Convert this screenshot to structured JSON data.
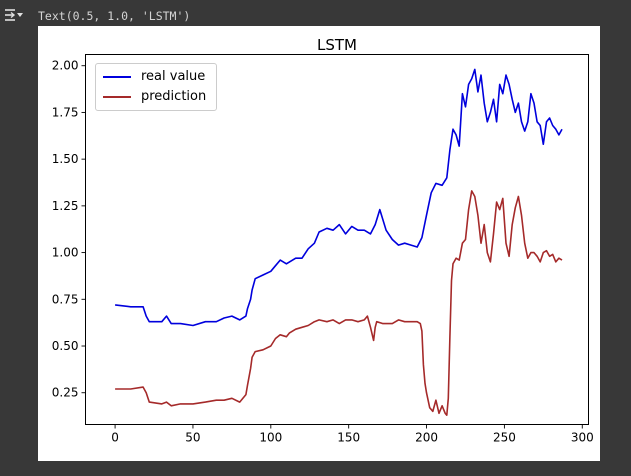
{
  "output": {
    "expand_icon": "output-expand-icon",
    "repr_text": "Text(0.5, 1.0, 'LSTM')"
  },
  "chart_data": {
    "type": "line",
    "title": "LSTM",
    "xlabel": "",
    "ylabel": "",
    "xlim": [
      -19,
      304
    ],
    "ylim": [
      0.08,
      2.06
    ],
    "xticks": [
      0,
      50,
      100,
      150,
      200,
      250,
      300
    ],
    "yticks": [
      0.25,
      0.5,
      0.75,
      1.0,
      1.25,
      1.5,
      1.75,
      2.0
    ],
    "legend_position": "top-left",
    "grid": false,
    "series": [
      {
        "name": "real value",
        "color": "#0000dd",
        "points": [
          [
            0,
            0.72
          ],
          [
            10,
            0.71
          ],
          [
            18,
            0.71
          ],
          [
            20,
            0.66
          ],
          [
            22,
            0.63
          ],
          [
            30,
            0.63
          ],
          [
            33,
            0.66
          ],
          [
            36,
            0.62
          ],
          [
            42,
            0.62
          ],
          [
            50,
            0.61
          ],
          [
            58,
            0.63
          ],
          [
            65,
            0.63
          ],
          [
            70,
            0.65
          ],
          [
            75,
            0.66
          ],
          [
            80,
            0.64
          ],
          [
            84,
            0.66
          ],
          [
            85,
            0.7
          ],
          [
            87,
            0.75
          ],
          [
            88,
            0.8
          ],
          [
            90,
            0.86
          ],
          [
            95,
            0.88
          ],
          [
            100,
            0.9
          ],
          [
            103,
            0.93
          ],
          [
            106,
            0.96
          ],
          [
            110,
            0.94
          ],
          [
            112,
            0.95
          ],
          [
            116,
            0.97
          ],
          [
            120,
            0.97
          ],
          [
            124,
            1.02
          ],
          [
            128,
            1.05
          ],
          [
            131,
            1.11
          ],
          [
            136,
            1.13
          ],
          [
            140,
            1.12
          ],
          [
            144,
            1.15
          ],
          [
            148,
            1.1
          ],
          [
            152,
            1.14
          ],
          [
            156,
            1.12
          ],
          [
            160,
            1.12
          ],
          [
            164,
            1.1
          ],
          [
            167,
            1.15
          ],
          [
            170,
            1.23
          ],
          [
            174,
            1.12
          ],
          [
            178,
            1.07
          ],
          [
            182,
            1.04
          ],
          [
            186,
            1.05
          ],
          [
            190,
            1.04
          ],
          [
            194,
            1.03
          ],
          [
            197,
            1.08
          ],
          [
            200,
            1.2
          ],
          [
            203,
            1.32
          ],
          [
            206,
            1.37
          ],
          [
            210,
            1.36
          ],
          [
            213,
            1.4
          ],
          [
            215,
            1.55
          ],
          [
            217,
            1.66
          ],
          [
            219,
            1.63
          ],
          [
            221,
            1.57
          ],
          [
            223,
            1.85
          ],
          [
            225,
            1.78
          ],
          [
            227,
            1.9
          ],
          [
            229,
            1.93
          ],
          [
            231,
            1.98
          ],
          [
            233,
            1.86
          ],
          [
            235,
            1.95
          ],
          [
            237,
            1.8
          ],
          [
            239,
            1.7
          ],
          [
            241,
            1.75
          ],
          [
            243,
            1.82
          ],
          [
            245,
            1.7
          ],
          [
            247,
            1.9
          ],
          [
            249,
            1.85
          ],
          [
            251,
            1.95
          ],
          [
            253,
            1.9
          ],
          [
            255,
            1.82
          ],
          [
            257,
            1.75
          ],
          [
            259,
            1.8
          ],
          [
            261,
            1.7
          ],
          [
            263,
            1.65
          ],
          [
            265,
            1.7
          ],
          [
            267,
            1.85
          ],
          [
            269,
            1.8
          ],
          [
            271,
            1.7
          ],
          [
            273,
            1.68
          ],
          [
            275,
            1.58
          ],
          [
            277,
            1.7
          ],
          [
            279,
            1.72
          ],
          [
            281,
            1.68
          ],
          [
            283,
            1.66
          ],
          [
            285,
            1.63
          ],
          [
            287,
            1.66
          ]
        ]
      },
      {
        "name": "prediction",
        "color": "#a52a2a",
        "points": [
          [
            0,
            0.27
          ],
          [
            10,
            0.27
          ],
          [
            18,
            0.28
          ],
          [
            20,
            0.25
          ],
          [
            22,
            0.2
          ],
          [
            30,
            0.19
          ],
          [
            33,
            0.2
          ],
          [
            36,
            0.18
          ],
          [
            42,
            0.19
          ],
          [
            50,
            0.19
          ],
          [
            58,
            0.2
          ],
          [
            65,
            0.21
          ],
          [
            70,
            0.21
          ],
          [
            75,
            0.22
          ],
          [
            80,
            0.2
          ],
          [
            84,
            0.24
          ],
          [
            85,
            0.29
          ],
          [
            87,
            0.38
          ],
          [
            88,
            0.44
          ],
          [
            90,
            0.47
          ],
          [
            95,
            0.48
          ],
          [
            100,
            0.5
          ],
          [
            103,
            0.54
          ],
          [
            106,
            0.56
          ],
          [
            110,
            0.55
          ],
          [
            112,
            0.57
          ],
          [
            116,
            0.59
          ],
          [
            120,
            0.6
          ],
          [
            124,
            0.61
          ],
          [
            128,
            0.63
          ],
          [
            131,
            0.64
          ],
          [
            136,
            0.63
          ],
          [
            140,
            0.64
          ],
          [
            144,
            0.62
          ],
          [
            148,
            0.64
          ],
          [
            152,
            0.64
          ],
          [
            156,
            0.63
          ],
          [
            160,
            0.64
          ],
          [
            162,
            0.66
          ],
          [
            164,
            0.6
          ],
          [
            166,
            0.53
          ],
          [
            167,
            0.6
          ],
          [
            168,
            0.63
          ],
          [
            172,
            0.62
          ],
          [
            178,
            0.62
          ],
          [
            182,
            0.64
          ],
          [
            186,
            0.63
          ],
          [
            190,
            0.63
          ],
          [
            194,
            0.63
          ],
          [
            196,
            0.62
          ],
          [
            197,
            0.58
          ],
          [
            198,
            0.4
          ],
          [
            199,
            0.3
          ],
          [
            200,
            0.25
          ],
          [
            202,
            0.17
          ],
          [
            204,
            0.15
          ],
          [
            206,
            0.21
          ],
          [
            208,
            0.14
          ],
          [
            210,
            0.18
          ],
          [
            212,
            0.14
          ],
          [
            213,
            0.13
          ],
          [
            214,
            0.22
          ],
          [
            215,
            0.55
          ],
          [
            216,
            0.85
          ],
          [
            217,
            0.94
          ],
          [
            219,
            0.97
          ],
          [
            221,
            0.96
          ],
          [
            223,
            1.05
          ],
          [
            225,
            1.07
          ],
          [
            227,
            1.23
          ],
          [
            229,
            1.33
          ],
          [
            231,
            1.3
          ],
          [
            233,
            1.2
          ],
          [
            235,
            1.05
          ],
          [
            237,
            1.15
          ],
          [
            239,
            1.0
          ],
          [
            241,
            0.95
          ],
          [
            243,
            1.1
          ],
          [
            245,
            1.27
          ],
          [
            247,
            1.23
          ],
          [
            249,
            1.29
          ],
          [
            251,
            1.05
          ],
          [
            253,
            0.98
          ],
          [
            255,
            1.15
          ],
          [
            257,
            1.24
          ],
          [
            259,
            1.3
          ],
          [
            261,
            1.2
          ],
          [
            263,
            1.05
          ],
          [
            265,
            0.97
          ],
          [
            267,
            1.0
          ],
          [
            269,
            1.0
          ],
          [
            271,
            0.98
          ],
          [
            273,
            0.95
          ],
          [
            275,
            1.0
          ],
          [
            277,
            1.01
          ],
          [
            279,
            0.98
          ],
          [
            281,
            0.99
          ],
          [
            283,
            0.95
          ],
          [
            285,
            0.97
          ],
          [
            287,
            0.96
          ]
        ]
      }
    ]
  }
}
